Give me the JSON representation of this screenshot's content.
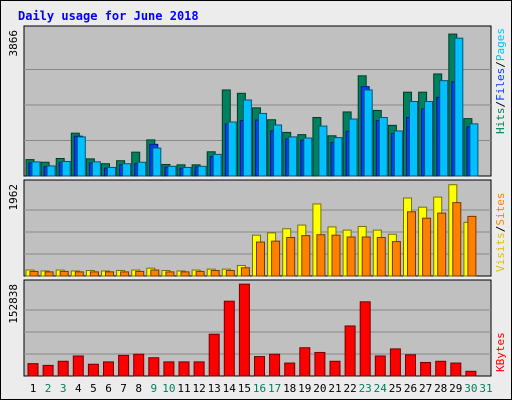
{
  "title": "Daily usage for June 2018",
  "colors": {
    "background": "#ececec",
    "panel": "#c0c0c0",
    "title": "#0000ff",
    "hits": "#00805c",
    "files": "#0040ff",
    "pages": "#00c0ff",
    "visits": "#ffff00",
    "sites": "#ff8000",
    "kbytes": "#ff0000",
    "weekend_day": "#00805c",
    "weekday": "#000000"
  },
  "legends": {
    "top": [
      {
        "label": "Hits",
        "color": "#00805c"
      },
      {
        "label": "/",
        "color": "#000000"
      },
      {
        "label": "Files",
        "color": "#0040ff"
      },
      {
        "label": "/",
        "color": "#000000"
      },
      {
        "label": "Pages",
        "color": "#00c0ff"
      }
    ],
    "middle": [
      {
        "label": "Visits",
        "color": "#e0c000"
      },
      {
        "label": "/",
        "color": "#000000"
      },
      {
        "label": "Sites",
        "color": "#ff8000"
      }
    ],
    "bottom": [
      {
        "label": "KBytes",
        "color": "#ff0000"
      }
    ]
  },
  "chart_data": [
    {
      "type": "bar",
      "title": "Daily usage for June 2018",
      "ylabel_max": "3866",
      "ylim": [
        0,
        3866
      ],
      "categories": [
        "1",
        "2",
        "3",
        "4",
        "5",
        "6",
        "7",
        "8",
        "9",
        "10",
        "11",
        "12",
        "13",
        "14",
        "15",
        "16",
        "17",
        "18",
        "19",
        "20",
        "21",
        "22",
        "23",
        "24",
        "25",
        "26",
        "27",
        "28",
        "29",
        "30",
        "31"
      ],
      "series": [
        {
          "name": "Hits",
          "values": [
            440,
            370,
            470,
            1150,
            460,
            330,
            410,
            640,
            970,
            310,
            300,
            300,
            650,
            2310,
            2220,
            1830,
            1510,
            1170,
            1110,
            1570,
            1080,
            1720,
            2690,
            1760,
            1360,
            2250,
            2250,
            2740,
            3810,
            1540,
            0
          ]
        },
        {
          "name": "Files",
          "values": [
            350,
            250,
            370,
            1070,
            350,
            210,
            300,
            330,
            850,
            240,
            210,
            240,
            520,
            1400,
            1490,
            1500,
            1210,
            1000,
            960,
            0,
            900,
            1200,
            2400,
            1490,
            1140,
            1570,
            1800,
            2110,
            2530,
            1320,
            0
          ]
        },
        {
          "name": "Pages",
          "values": [
            380,
            270,
            390,
            1050,
            380,
            230,
            330,
            370,
            750,
            260,
            230,
            260,
            580,
            1450,
            2040,
            1680,
            1370,
            1050,
            1020,
            1340,
            1030,
            1530,
            2310,
            1570,
            1210,
            2000,
            2000,
            2560,
            3700,
            1400,
            0
          ]
        }
      ]
    },
    {
      "type": "bar",
      "ylabel_max": "1962",
      "ylim": [
        0,
        1962
      ],
      "categories": [
        "1",
        "2",
        "3",
        "4",
        "5",
        "6",
        "7",
        "8",
        "9",
        "10",
        "11",
        "12",
        "13",
        "14",
        "15",
        "16",
        "17",
        "18",
        "19",
        "20",
        "21",
        "22",
        "23",
        "24",
        "25",
        "26",
        "27",
        "28",
        "29",
        "30",
        "31"
      ],
      "series": [
        {
          "name": "Visits",
          "values": [
            130,
            110,
            130,
            110,
            120,
            110,
            120,
            130,
            170,
            120,
            110,
            130,
            150,
            150,
            230,
            890,
            940,
            1030,
            1110,
            1570,
            1070,
            1000,
            1080,
            1000,
            910,
            1700,
            1500,
            1720,
            1990,
            1170,
            0
          ]
        },
        {
          "name": "Sites",
          "values": [
            100,
            90,
            100,
            90,
            90,
            90,
            90,
            100,
            130,
            90,
            90,
            100,
            120,
            120,
            180,
            740,
            760,
            840,
            880,
            900,
            890,
            850,
            850,
            840,
            750,
            1400,
            1260,
            1370,
            1600,
            1300,
            0
          ]
        }
      ]
    },
    {
      "type": "bar",
      "ylabel_max": "152838",
      "ylim": [
        0,
        152838
      ],
      "categories": [
        "1",
        "2",
        "3",
        "4",
        "5",
        "6",
        "7",
        "8",
        "9",
        "10",
        "11",
        "12",
        "13",
        "14",
        "15",
        "16",
        "17",
        "18",
        "19",
        "20",
        "21",
        "22",
        "23",
        "24",
        "25",
        "26",
        "27",
        "28",
        "29",
        "30",
        "31"
      ],
      "series": [
        {
          "name": "KBytes",
          "values": [
            21000,
            18000,
            25000,
            34000,
            20000,
            24000,
            35000,
            37000,
            31000,
            24000,
            24000,
            24000,
            71000,
            127000,
            156000,
            33000,
            37000,
            22000,
            48000,
            40000,
            25000,
            85000,
            126000,
            34000,
            46000,
            36000,
            23000,
            25000,
            22000,
            8000,
            0
          ]
        }
      ]
    }
  ],
  "weekend_days": [
    "2",
    "3",
    "9",
    "10",
    "16",
    "17",
    "23",
    "24",
    "30",
    "31"
  ]
}
